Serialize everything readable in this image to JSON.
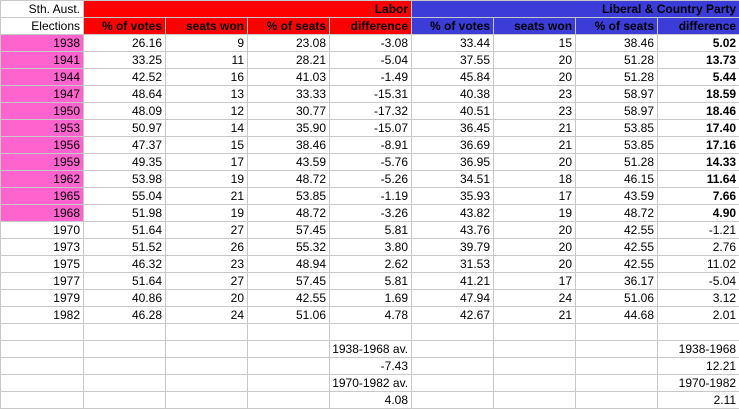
{
  "title": {
    "line1": "Sth. Aust.",
    "line2": "Elections"
  },
  "sections": [
    {
      "name": "Labor",
      "color": "#ff0000"
    },
    {
      "name": "Liberal & Country Party",
      "color": "#3c3cd9"
    }
  ],
  "column_headers": [
    "% of votes",
    "seats won",
    "% of seats",
    "difference"
  ],
  "column_keys": [
    "votes",
    "seats-won",
    "pct-seats",
    "difference"
  ],
  "colors": {
    "labor": "#ff0000",
    "lcp": "#3c3cd9",
    "year_highlight": "#ff63ce",
    "negative": "#ff0000",
    "gridline": "#c8c8c8"
  },
  "rows": [
    {
      "year": "1938",
      "highlight": true,
      "labor": [
        "26.16",
        "9",
        "23.08",
        "-3.08"
      ],
      "lcp": [
        "33.44",
        "15",
        "38.46",
        "5.02"
      ]
    },
    {
      "year": "1941",
      "highlight": true,
      "labor": [
        "33.25",
        "11",
        "28.21",
        "-5.04"
      ],
      "lcp": [
        "37.55",
        "20",
        "51.28",
        "13.73"
      ]
    },
    {
      "year": "1944",
      "highlight": true,
      "labor": [
        "42.52",
        "16",
        "41.03",
        "-1.49"
      ],
      "lcp": [
        "45.84",
        "20",
        "51.28",
        "5.44"
      ]
    },
    {
      "year": "1947",
      "highlight": true,
      "labor": [
        "48.64",
        "13",
        "33.33",
        "-15.31"
      ],
      "lcp": [
        "40.38",
        "23",
        "58.97",
        "18.59"
      ]
    },
    {
      "year": "1950",
      "highlight": true,
      "labor": [
        "48.09",
        "12",
        "30.77",
        "-17.32"
      ],
      "lcp": [
        "40.51",
        "23",
        "58.97",
        "18.46"
      ]
    },
    {
      "year": "1953",
      "highlight": true,
      "labor": [
        "50.97",
        "14",
        "35.90",
        "-15.07"
      ],
      "lcp": [
        "36.45",
        "21",
        "53.85",
        "17.40"
      ]
    },
    {
      "year": "1956",
      "highlight": true,
      "labor": [
        "47.37",
        "15",
        "38.46",
        "-8.91"
      ],
      "lcp": [
        "36.69",
        "21",
        "53.85",
        "17.16"
      ]
    },
    {
      "year": "1959",
      "highlight": true,
      "labor": [
        "49.35",
        "17",
        "43.59",
        "-5.76"
      ],
      "lcp": [
        "36.95",
        "20",
        "51.28",
        "14.33"
      ]
    },
    {
      "year": "1962",
      "highlight": true,
      "labor": [
        "53.98",
        "19",
        "48.72",
        "-5.26"
      ],
      "lcp": [
        "34.51",
        "18",
        "46.15",
        "11.64"
      ]
    },
    {
      "year": "1965",
      "highlight": true,
      "labor": [
        "55.04",
        "21",
        "53.85",
        "-1.19"
      ],
      "lcp": [
        "35.93",
        "17",
        "43.59",
        "7.66"
      ]
    },
    {
      "year": "1968",
      "highlight": true,
      "labor": [
        "51.98",
        "19",
        "48.72",
        "-3.26"
      ],
      "lcp": [
        "43.82",
        "19",
        "48.72",
        "4.90"
      ]
    },
    {
      "year": "1970",
      "highlight": false,
      "labor": [
        "51.64",
        "27",
        "57.45",
        "5.81"
      ],
      "lcp": [
        "43.76",
        "20",
        "42.55",
        "-1.21"
      ]
    },
    {
      "year": "1973",
      "highlight": false,
      "labor": [
        "51.52",
        "26",
        "55.32",
        "3.80"
      ],
      "lcp": [
        "39.79",
        "20",
        "42.55",
        "2.76"
      ]
    },
    {
      "year": "1975",
      "highlight": false,
      "labor": [
        "46.32",
        "23",
        "48.94",
        "2.62"
      ],
      "lcp": [
        "31.53",
        "20",
        "42.55",
        "11.02"
      ]
    },
    {
      "year": "1977",
      "highlight": false,
      "labor": [
        "51.64",
        "27",
        "57.45",
        "5.81"
      ],
      "lcp": [
        "41.21",
        "17",
        "36.17",
        "-5.04"
      ]
    },
    {
      "year": "1979",
      "highlight": false,
      "labor": [
        "40.86",
        "20",
        "42.55",
        "1.69"
      ],
      "lcp": [
        "47.94",
        "24",
        "51.06",
        "3.12"
      ]
    },
    {
      "year": "1982",
      "highlight": false,
      "labor": [
        "46.28",
        "24",
        "51.06",
        "4.78"
      ],
      "lcp": [
        "42.67",
        "21",
        "44.68",
        "2.01"
      ]
    }
  ],
  "summary": {
    "labor": [
      {
        "label": "1938-1968 av.",
        "value": "-7.43"
      },
      {
        "label": "1970-1982 av.",
        "value": "4.08"
      }
    ],
    "lcp": [
      {
        "label": "1938-1968",
        "value": "12.21"
      },
      {
        "label": "1970-1982",
        "value": "2.11"
      }
    ]
  }
}
